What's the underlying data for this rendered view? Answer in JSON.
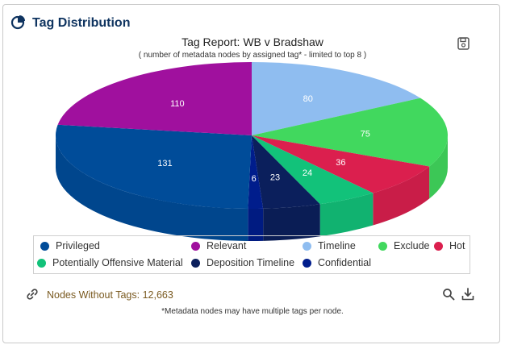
{
  "header": {
    "title": "Tag Distribution",
    "icon": "pie-chart-icon"
  },
  "chart_data": {
    "type": "pie",
    "style": "3d",
    "title": "Tag Report: WB v Bradshaw",
    "subtitle": "( number of metadata nodes by assigned tag* - limited to top 8 )",
    "categories": [
      "Privileged",
      "Relevant",
      "Timeline",
      "Exclude",
      "Hot",
      "Potentially Offensive Material",
      "Deposition Timeline",
      "Confidential"
    ],
    "values": [
      131,
      110,
      80,
      75,
      36,
      24,
      23,
      6
    ],
    "colors": [
      "#004c99",
      "#a0109e",
      "#8fbdf0",
      "#41d85e",
      "#db1f4e",
      "#12c27a",
      "#0b1f5c",
      "#001d8c"
    ],
    "data_labels": true,
    "legend": "bottom"
  },
  "legend": {
    "items": [
      {
        "label": "Privileged",
        "color": "#004c99"
      },
      {
        "label": "Relevant",
        "color": "#a0109e"
      },
      {
        "label": "Timeline",
        "color": "#8fbdf0"
      },
      {
        "label": "Exclude",
        "color": "#41d85e"
      },
      {
        "label": "Hot",
        "color": "#db1f4e"
      },
      {
        "label": "Potentially Offensive Material",
        "color": "#12c27a"
      },
      {
        "label": "Deposition Timeline",
        "color": "#0b1f5c"
      },
      {
        "label": "Confidential",
        "color": "#001d8c"
      }
    ]
  },
  "footer": {
    "nodes_without_tags": "Nodes Without Tags: 12,663",
    "note": "*Metadata nodes may have multiple tags per node.",
    "link_icon": "link-icon",
    "search_icon": "search-icon",
    "download_icon": "download-icon",
    "save_icon": "save-icon"
  }
}
